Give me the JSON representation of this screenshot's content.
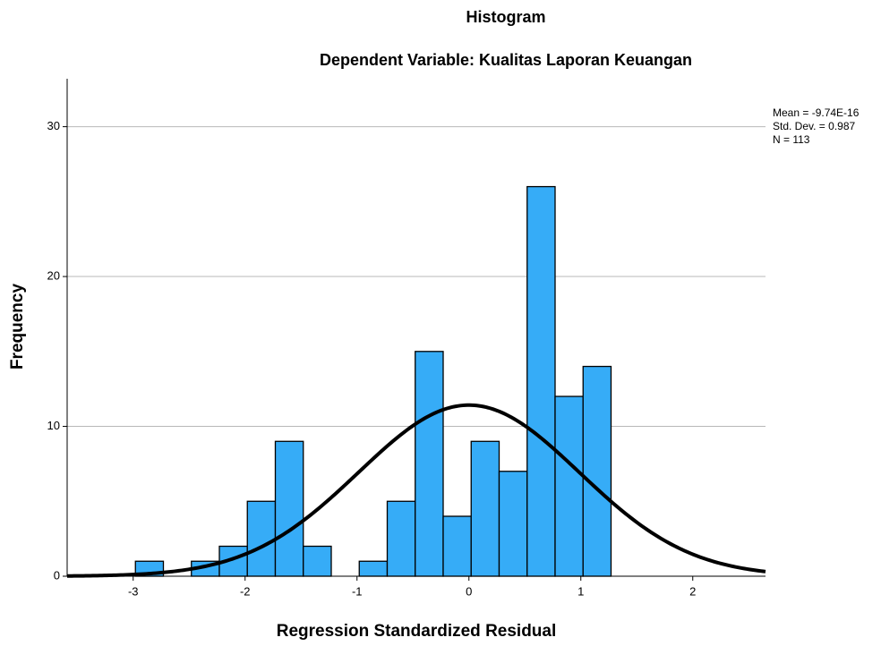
{
  "chart_data": {
    "type": "histogram",
    "title": "Histogram",
    "subtitle": "Dependent Variable: Kualitas Laporan Keuangan",
    "x_label": "Regression Standardized Residual",
    "y_label": "Frequency",
    "bins": [
      -2.98,
      -2.73,
      -2.48,
      -2.23,
      -1.98,
      -1.73,
      -1.48,
      -1.23,
      -0.98,
      -0.73,
      -0.48,
      -0.23,
      0.02,
      0.27,
      0.52,
      0.77,
      1.02,
      1.27
    ],
    "values": [
      1,
      0,
      1,
      2,
      5,
      9,
      2,
      0,
      1,
      5,
      15,
      4,
      9,
      7,
      26,
      12,
      14
    ],
    "color": "#36acf7",
    "xlim": [
      -3.59,
      2.65
    ],
    "ylim": [
      0,
      33.2
    ],
    "xticks": [
      -3,
      -2,
      -1,
      0,
      1,
      2
    ],
    "yticks": [
      0,
      10,
      20,
      30
    ],
    "grid": true,
    "normal_curve": {
      "mean": -9.74e-16,
      "std_dev": 0.987,
      "n": 113
    },
    "stats": [
      "Mean = -9.74E-16",
      "Std. Dev. = 0.987",
      "N = 113"
    ]
  }
}
